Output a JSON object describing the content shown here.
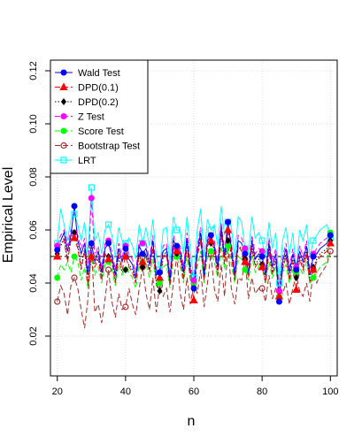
{
  "chart_data": {
    "type": "line",
    "title": "",
    "xlabel": "n",
    "ylabel": "Empirical Level",
    "xlim": [
      18,
      102
    ],
    "ylim": [
      0.005,
      0.124
    ],
    "xticks": [
      20,
      40,
      60,
      80,
      100
    ],
    "xtick_labels": [
      "20",
      "40",
      "60",
      "80",
      "100"
    ],
    "yticks": [
      0.02,
      0.04,
      0.06,
      0.08,
      0.1,
      0.12
    ],
    "ytick_labels": [
      "0.02",
      "0.04",
      "0.06",
      "0.08",
      "0.10",
      "0.12"
    ],
    "grid": true,
    "legend_position": "top-left",
    "reference_line": 0.05,
    "x": [
      20,
      21,
      22,
      23,
      24,
      25,
      26,
      27,
      28,
      29,
      30,
      31,
      32,
      33,
      34,
      35,
      36,
      37,
      38,
      39,
      40,
      41,
      42,
      43,
      44,
      45,
      46,
      47,
      48,
      49,
      50,
      51,
      52,
      53,
      54,
      55,
      56,
      57,
      58,
      59,
      60,
      61,
      62,
      63,
      64,
      65,
      66,
      67,
      68,
      69,
      70,
      71,
      72,
      73,
      74,
      75,
      76,
      77,
      78,
      79,
      80,
      81,
      82,
      83,
      84,
      85,
      86,
      87,
      88,
      89,
      90,
      91,
      92,
      93,
      94,
      95,
      96,
      97,
      98,
      99,
      100
    ],
    "marker_x": [
      20,
      25,
      30,
      35,
      40,
      45,
      50,
      55,
      60,
      65,
      70,
      75,
      80,
      85,
      90,
      95,
      100
    ],
    "series": [
      {
        "name": "Wald Test",
        "color": "#0000ff",
        "dash": "",
        "marker": "circle-filled",
        "values": [
          0.0525,
          0.056,
          0.059,
          0.052,
          0.058,
          0.069,
          0.056,
          0.051,
          0.055,
          0.043,
          0.055,
          0.048,
          0.052,
          0.044,
          0.053,
          0.055,
          0.05,
          0.043,
          0.053,
          0.048,
          0.053,
          0.049,
          0.047,
          0.042,
          0.054,
          0.051,
          0.053,
          0.047,
          0.056,
          0.043,
          0.044,
          0.052,
          0.053,
          0.041,
          0.056,
          0.054,
          0.052,
          0.044,
          0.057,
          0.045,
          0.038,
          0.052,
          0.059,
          0.043,
          0.056,
          0.058,
          0.054,
          0.046,
          0.061,
          0.05,
          0.063,
          0.053,
          0.043,
          0.056,
          0.055,
          0.051,
          0.044,
          0.056,
          0.049,
          0.051,
          0.05,
          0.043,
          0.055,
          0.046,
          0.051,
          0.033,
          0.048,
          0.053,
          0.044,
          0.051,
          0.045,
          0.052,
          0.048,
          0.054,
          0.043,
          0.05,
          0.051,
          0.053,
          0.054,
          0.055,
          0.058
        ]
      },
      {
        "name": "DPD(0.1)",
        "color": "#ff0000",
        "dash": "6,3",
        "marker": "triangle-filled",
        "values": [
          0.05,
          0.055,
          0.056,
          0.048,
          0.056,
          0.057,
          0.053,
          0.045,
          0.052,
          0.039,
          0.05,
          0.046,
          0.049,
          0.041,
          0.051,
          0.049,
          0.048,
          0.04,
          0.051,
          0.045,
          0.05,
          0.046,
          0.044,
          0.04,
          0.051,
          0.048,
          0.05,
          0.044,
          0.053,
          0.041,
          0.042,
          0.05,
          0.051,
          0.039,
          0.053,
          0.052,
          0.049,
          0.041,
          0.054,
          0.042,
          0.0335,
          0.05,
          0.056,
          0.041,
          0.054,
          0.056,
          0.052,
          0.043,
          0.059,
          0.047,
          0.06,
          0.05,
          0.041,
          0.054,
          0.052,
          0.048,
          0.042,
          0.053,
          0.046,
          0.048,
          0.046,
          0.04,
          0.052,
          0.043,
          0.048,
          0.035,
          0.045,
          0.05,
          0.041,
          0.048,
          0.0375,
          0.049,
          0.045,
          0.051,
          0.04,
          0.045,
          0.048,
          0.05,
          0.051,
          0.052,
          0.055
        ]
      },
      {
        "name": "DPD(0.2)",
        "color": "#000000",
        "dash": "1.5,2",
        "marker": "diamond-filled",
        "values": [
          0.051,
          0.054,
          0.057,
          0.049,
          0.057,
          0.059,
          0.054,
          0.046,
          0.053,
          0.04,
          0.05,
          0.047,
          0.05,
          0.042,
          0.051,
          0.05,
          0.049,
          0.041,
          0.05,
          0.044,
          0.045,
          0.047,
          0.045,
          0.041,
          0.051,
          0.046,
          0.051,
          0.045,
          0.053,
          0.04,
          0.037,
          0.05,
          0.052,
          0.04,
          0.054,
          0.051,
          0.05,
          0.042,
          0.055,
          0.043,
          0.038,
          0.051,
          0.057,
          0.042,
          0.054,
          0.055,
          0.053,
          0.044,
          0.059,
          0.048,
          0.056,
          0.051,
          0.042,
          0.054,
          0.053,
          0.049,
          0.043,
          0.054,
          0.047,
          0.049,
          0.047,
          0.041,
          0.053,
          0.044,
          0.049,
          0.0345,
          0.046,
          0.051,
          0.042,
          0.049,
          0.042,
          0.05,
          0.046,
          0.052,
          0.041,
          0.046,
          0.049,
          0.051,
          0.052,
          0.053,
          0.056
        ]
      },
      {
        "name": "Z Test",
        "color": "#ff00ff",
        "dash": "6,3",
        "marker": "circle-filled",
        "values": [
          0.054,
          0.058,
          0.06,
          0.054,
          0.06,
          0.059,
          0.058,
          0.053,
          0.057,
          0.044,
          0.072,
          0.05,
          0.054,
          0.046,
          0.055,
          0.056,
          0.052,
          0.045,
          0.055,
          0.05,
          0.054,
          0.051,
          0.049,
          0.044,
          0.056,
          0.055,
          0.055,
          0.049,
          0.058,
          0.045,
          0.044,
          0.054,
          0.055,
          0.043,
          0.058,
          0.053,
          0.054,
          0.046,
          0.059,
          0.047,
          0.041,
          0.054,
          0.061,
          0.045,
          0.058,
          0.058,
          0.056,
          0.048,
          0.063,
          0.052,
          0.063,
          0.055,
          0.045,
          0.058,
          0.057,
          0.053,
          0.046,
          0.058,
          0.051,
          0.053,
          0.052,
          0.045,
          0.057,
          0.048,
          0.053,
          0.037,
          0.05,
          0.055,
          0.046,
          0.053,
          0.046,
          0.054,
          0.05,
          0.056,
          0.045,
          0.051,
          0.053,
          0.055,
          0.056,
          0.057,
          0.058
        ]
      },
      {
        "name": "Score Test",
        "color": "#00ff00",
        "dash": "6,3",
        "marker": "circle-filled",
        "values": [
          0.042,
          0.047,
          0.045,
          0.048,
          0.044,
          0.05,
          0.048,
          0.041,
          0.046,
          0.038,
          0.05,
          0.043,
          0.046,
          0.04,
          0.047,
          0.048,
          0.045,
          0.039,
          0.047,
          0.043,
          0.045,
          0.044,
          0.042,
          0.038,
          0.047,
          0.048,
          0.047,
          0.042,
          0.049,
          0.039,
          0.04,
          0.046,
          0.047,
          0.038,
          0.049,
          0.05,
          0.046,
          0.04,
          0.05,
          0.041,
          0.04,
          0.046,
          0.052,
          0.04,
          0.05,
          0.052,
          0.048,
          0.042,
          0.054,
          0.045,
          0.054,
          0.047,
          0.04,
          0.05,
          0.049,
          0.045,
          0.041,
          0.05,
          0.044,
          0.046,
          0.052,
          0.04,
          0.048,
          0.042,
          0.046,
          0.035,
          0.044,
          0.047,
          0.04,
          0.045,
          0.044,
          0.046,
          0.043,
          0.048,
          0.04,
          0.042,
          0.044,
          0.046,
          0.047,
          0.048,
          0.059
        ]
      },
      {
        "name": "Bootstrap Test",
        "color": "#a52a2a",
        "dash": "6,3",
        "marker": "circle-open",
        "values": [
          0.033,
          0.039,
          0.036,
          0.028,
          0.039,
          0.042,
          0.038,
          0.03,
          0.023,
          0.034,
          0.054,
          0.029,
          0.032,
          0.025,
          0.034,
          0.045,
          0.033,
          0.027,
          0.036,
          0.03,
          0.031,
          0.038,
          0.032,
          0.028,
          0.038,
          0.046,
          0.036,
          0.03,
          0.042,
          0.029,
          0.039,
          0.035,
          0.038,
          0.029,
          0.04,
          0.05,
          0.036,
          0.03,
          0.042,
          0.032,
          0.04,
          0.036,
          0.045,
          0.031,
          0.04,
          0.051,
          0.038,
          0.033,
          0.047,
          0.035,
          0.054,
          0.038,
          0.032,
          0.042,
          0.041,
          0.049,
          0.034,
          0.042,
          0.036,
          0.038,
          0.038,
          0.033,
          0.043,
          0.034,
          0.038,
          0.037,
          0.036,
          0.04,
          0.032,
          0.038,
          0.043,
          0.037,
          0.035,
          0.04,
          0.033,
          0.045,
          0.04,
          0.043,
          0.045,
          0.047,
          0.052
        ]
      },
      {
        "name": "LRT",
        "color": "#00ffff",
        "dash": "",
        "marker": "square-open",
        "values": [
          0.055,
          0.068,
          0.062,
          0.056,
          0.064,
          0.066,
          0.062,
          0.056,
          0.063,
          0.05,
          0.076,
          0.056,
          0.059,
          0.051,
          0.06,
          0.062,
          0.058,
          0.05,
          0.061,
          0.056,
          0.055,
          0.057,
          0.054,
          0.049,
          0.062,
          0.055,
          0.061,
          0.054,
          0.064,
          0.05,
          0.045,
          0.06,
          0.061,
          0.048,
          0.065,
          0.06,
          0.06,
          0.051,
          0.065,
          0.052,
          0.042,
          0.06,
          0.068,
          0.05,
          0.064,
          0.06,
          0.062,
          0.054,
          0.069,
          0.058,
          0.063,
          0.061,
          0.05,
          0.065,
          0.063,
          0.053,
          0.051,
          0.065,
          0.057,
          0.059,
          0.056,
          0.05,
          0.063,
          0.053,
          0.059,
          0.04,
          0.056,
          0.061,
          0.051,
          0.059,
          0.045,
          0.06,
          0.056,
          0.062,
          0.05,
          0.056,
          0.058,
          0.06,
          0.061,
          0.062,
          0.057
        ]
      }
    ]
  }
}
